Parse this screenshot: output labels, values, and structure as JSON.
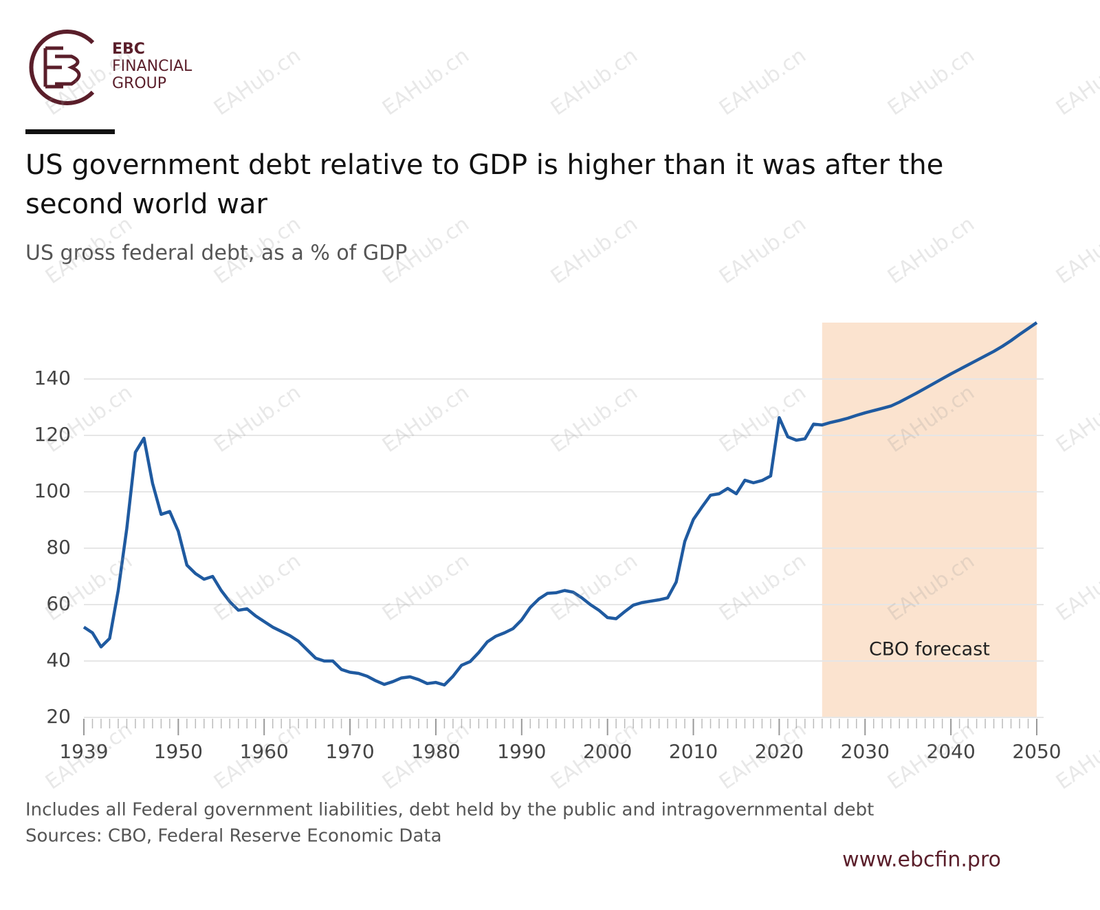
{
  "brand": {
    "line1": "EBC",
    "line2": "FINANCIAL",
    "line3": "GROUP",
    "url": "www.ebcfin.pro",
    "watermark": "EAHub.cn"
  },
  "chart_data": {
    "type": "line",
    "title": "US government debt relative to GDP is higher than it was after the second world war",
    "subtitle": "US gross federal debt, as a % of GDP",
    "notes": [
      "Includes all Federal government liabilities, debt held by the public and intragovernmental debt",
      "Sources: CBO, Federal Reserve Economic Data"
    ],
    "forecast": {
      "start": 2025,
      "end": 2050,
      "label": "CBO forecast",
      "color": "#fbe3cf"
    },
    "x": [
      1939,
      1940,
      1941,
      1942,
      1943,
      1944,
      1945,
      1946,
      1947,
      1948,
      1949,
      1950,
      1951,
      1952,
      1953,
      1954,
      1955,
      1956,
      1957,
      1958,
      1959,
      1960,
      1961,
      1962,
      1963,
      1964,
      1965,
      1966,
      1967,
      1968,
      1969,
      1970,
      1971,
      1972,
      1973,
      1974,
      1975,
      1976,
      1977,
      1978,
      1979,
      1980,
      1981,
      1982,
      1983,
      1984,
      1985,
      1986,
      1987,
      1988,
      1989,
      1990,
      1991,
      1992,
      1993,
      1994,
      1995,
      1996,
      1997,
      1998,
      1999,
      2000,
      2001,
      2002,
      2003,
      2004,
      2005,
      2006,
      2007,
      2008,
      2009,
      2010,
      2011,
      2012,
      2013,
      2014,
      2015,
      2016,
      2017,
      2018,
      2019,
      2020,
      2021,
      2022,
      2023,
      2024,
      2025,
      2026,
      2027,
      2028,
      2029,
      2030,
      2031,
      2032,
      2033,
      2034,
      2035,
      2036,
      2037,
      2038,
      2039,
      2040,
      2041,
      2042,
      2043,
      2044,
      2045,
      2046,
      2047,
      2048,
      2049,
      2050
    ],
    "series": [
      {
        "name": "US gross federal debt",
        "color": "#1f5aa0",
        "values": [
          52,
          50,
          45,
          48,
          65,
          87,
          114,
          119,
          103,
          92,
          93,
          86,
          74,
          71,
          69,
          70,
          65,
          61,
          58,
          58.5,
          56,
          54,
          52,
          50.5,
          49,
          47,
          44,
          41,
          40,
          40,
          37,
          36,
          35.6,
          34.6,
          33,
          31.7,
          32.7,
          34,
          34.4,
          33.4,
          32,
          32.4,
          31.5,
          34.6,
          38.5,
          39.8,
          43,
          46.8,
          48.8,
          50,
          51.5,
          54.6,
          59,
          62,
          64,
          64.2,
          65,
          64.4,
          62.4,
          60,
          58,
          55.4,
          55,
          57.5,
          59.8,
          60.7,
          61.2,
          61.7,
          62.4,
          68,
          82.4,
          90.2,
          94.6,
          98.8,
          99.3,
          101.2,
          99.3,
          104.1,
          103.2,
          104,
          105.6,
          126.3,
          119.5,
          118.3,
          118.8,
          124,
          123.7,
          124.6,
          125.3,
          126.1,
          127.1,
          128,
          128.8,
          129.6,
          130.4,
          131.8,
          133.4,
          135,
          136.7,
          138.4,
          140.1,
          141.8,
          143.4,
          145,
          146.6,
          148.2,
          149.8,
          151.6,
          153.6,
          155.8,
          157.9,
          160
        ]
      }
    ],
    "xlim": [
      1939,
      2050
    ],
    "xticks": [
      1939,
      1950,
      1960,
      1970,
      1980,
      1990,
      2000,
      2010,
      2020,
      2030,
      2040,
      2050
    ],
    "ylim": [
      20,
      160
    ],
    "yticks": [
      20,
      40,
      60,
      80,
      100,
      120,
      140
    ],
    "grid": true
  }
}
